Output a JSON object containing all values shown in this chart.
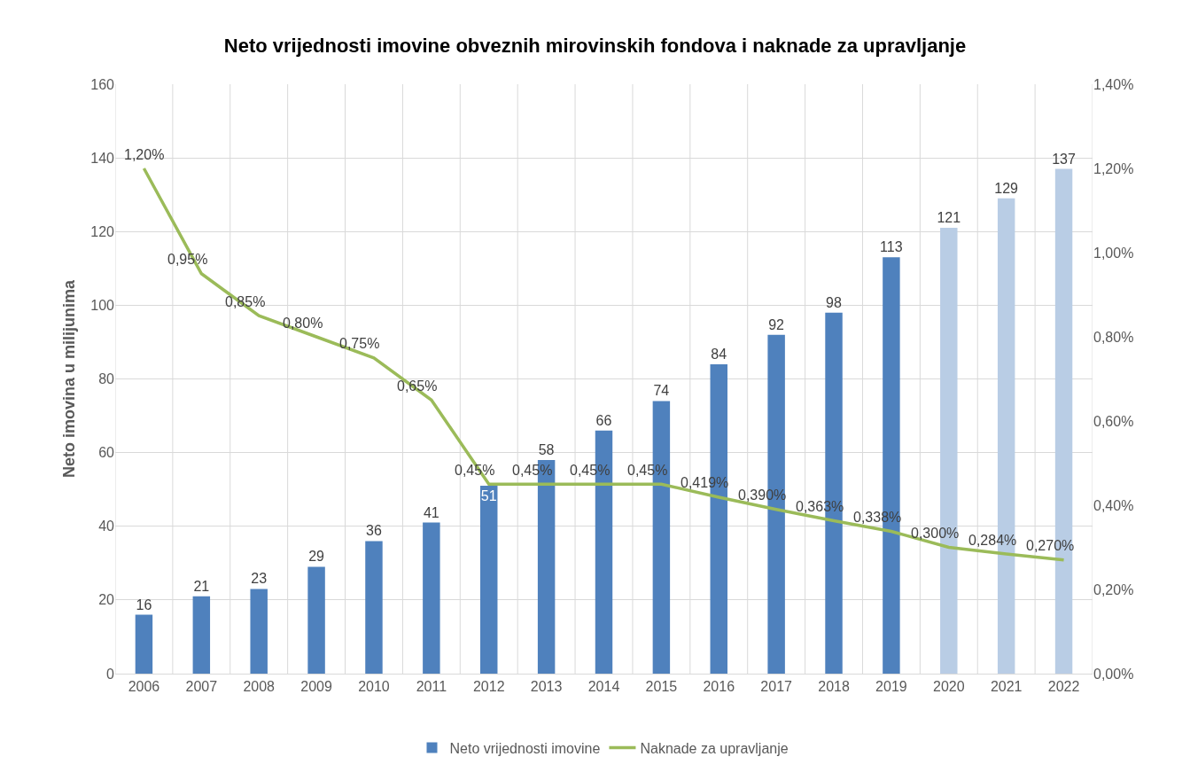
{
  "chart_data": {
    "type": "bar",
    "title": "Neto vrijednosti imovine obveznih mirovinskih fondova i naknade za upravljanje",
    "ylabel": "Neto imovina u milijunima",
    "categories": [
      "2006",
      "2007",
      "2008",
      "2009",
      "2010",
      "2011",
      "2012",
      "2013",
      "2014",
      "2015",
      "2016",
      "2017",
      "2018",
      "2019",
      "2020",
      "2021",
      "2022"
    ],
    "series": [
      {
        "name": "Neto vrijednosti imovine",
        "colors": [
          "#4f81bd",
          "#4f81bd",
          "#4f81bd",
          "#4f81bd",
          "#4f81bd",
          "#4f81bd",
          "#4f81bd",
          "#4f81bd",
          "#4f81bd",
          "#4f81bd",
          "#4f81bd",
          "#4f81bd",
          "#4f81bd",
          "#4f81bd",
          "#b9cde5",
          "#b9cde5",
          "#b9cde5"
        ],
        "values": [
          16,
          21,
          23,
          29,
          36,
          41,
          51,
          58,
          66,
          74,
          84,
          92,
          98,
          113,
          121,
          129,
          137
        ],
        "value_labels": [
          "16",
          "21",
          "23",
          "29",
          "36",
          "41",
          "51",
          "58",
          "66",
          "74",
          "84",
          "92",
          "98",
          "113",
          "121",
          "129",
          "137"
        ]
      },
      {
        "name": "Naknade za upravljanje",
        "type": "line",
        "axis": "y2",
        "color": "#9bbb59",
        "values": [
          1.2,
          0.95,
          0.85,
          0.8,
          0.75,
          0.65,
          0.45,
          0.45,
          0.45,
          0.45,
          0.419,
          0.39,
          0.363,
          0.338,
          0.3,
          0.284,
          0.27
        ],
        "value_labels": [
          "1,20%",
          "0,95%",
          "0,85%",
          "0,80%",
          "0,75%",
          "0,65%",
          "0,45%",
          "0,45%",
          "0,45%",
          "0,45%",
          "0,419%",
          "0,390%",
          "0,363%",
          "0,338%",
          "0,300%",
          "0,284%",
          "0,270%"
        ]
      }
    ],
    "ylim": [
      0,
      160
    ],
    "yticks": [
      0,
      20,
      40,
      60,
      80,
      100,
      120,
      140,
      160
    ],
    "y2lim": [
      0,
      1.4
    ],
    "y2ticks": [
      {
        "value": 0,
        "label": "0,00%"
      },
      {
        "value": 0.2,
        "label": "0,20%"
      },
      {
        "value": 0.4,
        "label": "0,40%"
      },
      {
        "value": 0.6,
        "label": "0,60%"
      },
      {
        "value": 0.8,
        "label": "0,80%"
      },
      {
        "value": 1.0,
        "label": "1,00%"
      },
      {
        "value": 1.2,
        "label": "1,20%"
      },
      {
        "value": 1.4,
        "label": "1,40%"
      }
    ],
    "grid": true,
    "legend": "bottom",
    "marker": "none",
    "line_style": "solid"
  }
}
